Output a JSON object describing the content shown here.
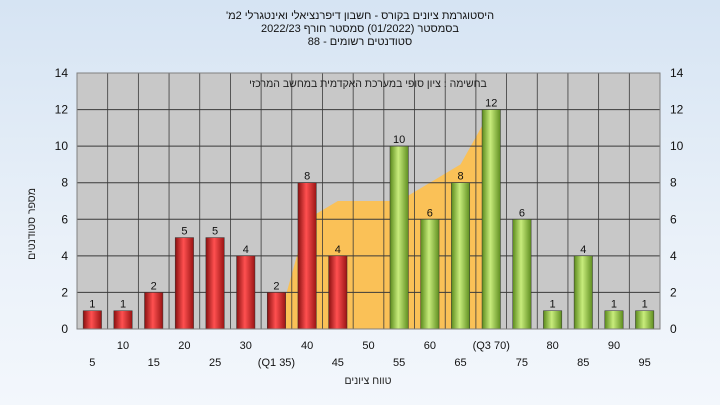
{
  "title_lines": [
    "'היסטוגרמת ציונים בקורס - חשבון דיפרנציאלי ואינטגרלי 2מ",
    "בסמסטר  (01/2022)  סמסטר חורף  2022/23",
    "סטודנטים רשומים - 88"
  ],
  "colors": {
    "fail_bar": "#d42a2a",
    "pass_bar": "#8fbf3c",
    "band_fill": "#ffc04a",
    "plot_bg": "#c8c8c8",
    "frame": "#808080"
  },
  "chart_data": {
    "type": "bar",
    "categories": [
      "5",
      "10",
      "15",
      "20",
      "25",
      "30",
      "(Q1 35)",
      "40",
      "45",
      "50",
      "55",
      "60",
      "65",
      "(Q3 70)",
      "75",
      "80",
      "85",
      "90",
      "95"
    ],
    "values": [
      1,
      1,
      2,
      5,
      5,
      4,
      2,
      8,
      4,
      null,
      10,
      6,
      8,
      12,
      6,
      1,
      4,
      1,
      1
    ],
    "data_labels": [
      "1",
      "1",
      "2",
      "5",
      "5",
      "4",
      "2",
      "8",
      "4",
      "",
      "10",
      "6",
      "8",
      "12",
      "6",
      "1",
      "4",
      "1",
      "1"
    ],
    "bar_group": [
      "fail",
      "fail",
      "fail",
      "fail",
      "fail",
      "fail",
      "fail",
      "fail",
      "fail",
      "",
      "pass",
      "pass",
      "pass",
      "pass",
      "pass",
      "pass",
      "pass",
      "pass",
      "pass"
    ],
    "band": {
      "x": [
        "(Q1 35)",
        "40",
        "45",
        "50",
        "55",
        "60",
        "65",
        "(Q3 70)"
      ],
      "values": [
        0,
        6,
        7,
        7,
        7,
        8,
        9,
        12
      ]
    },
    "ylabel": "מספר סטודנטים",
    "xlabel": "טווח ציונים",
    "ylim": [
      0,
      14
    ],
    "yticks": [
      "0",
      "2",
      "4",
      "6",
      "8",
      "10",
      "12",
      "14"
    ],
    "annotation": "בחשימה : ציון סופי במערכת האקדמית במחשב המרכזי",
    "grid": true
  }
}
